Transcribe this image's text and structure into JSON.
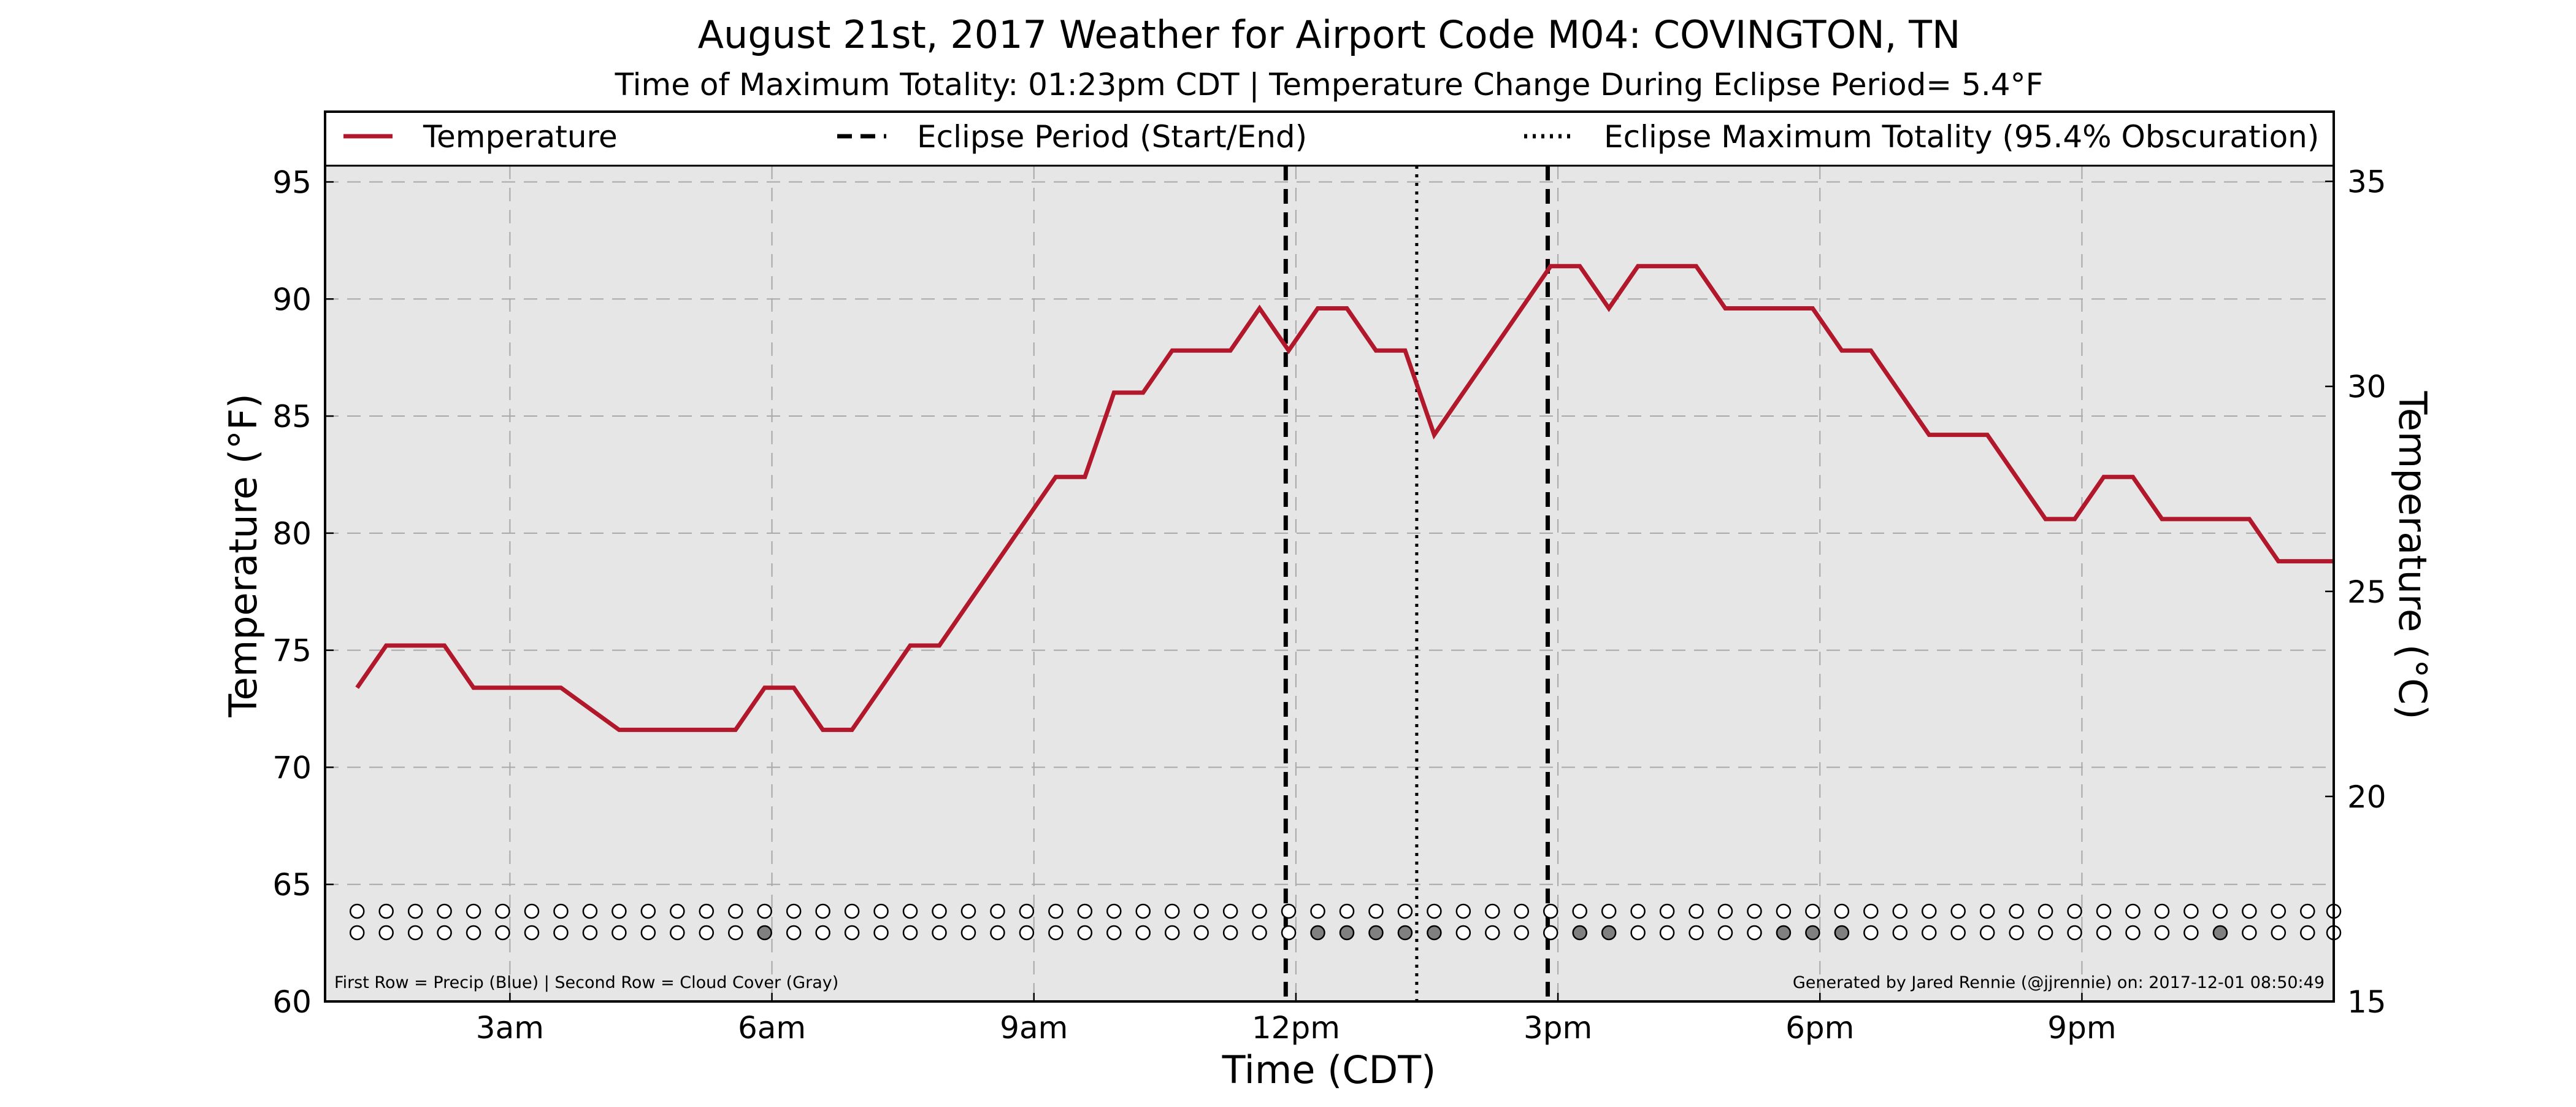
{
  "chart_data": {
    "type": "line",
    "title": "August 21st, 2017 Weather for Airport Code M04: COVINGTON, TN",
    "subtitle": "Time of Maximum Totality: 01:23pm CDT | Temperature Change During Eclipse Period= 5.4°F",
    "xlabel": "Time (CDT)",
    "ylabel": "Temperature (°F)",
    "ylabel_right": "Temperature (°C)",
    "xlim": [
      "00:53",
      "23:53"
    ],
    "ylim": [
      60,
      98
    ],
    "ylim_right": [
      15,
      36.7
    ],
    "grid": true,
    "legend_placement": "top",
    "x_ticks": [
      {
        "label": "3am",
        "value": "03:00"
      },
      {
        "label": "6am",
        "value": "06:00"
      },
      {
        "label": "9am",
        "value": "09:00"
      },
      {
        "label": "12pm",
        "value": "12:00"
      },
      {
        "label": "3pm",
        "value": "15:00"
      },
      {
        "label": "6pm",
        "value": "18:00"
      },
      {
        "label": "9pm",
        "value": "21:00"
      }
    ],
    "y_ticks": [
      "60",
      "65",
      "70",
      "75",
      "80",
      "85",
      "90",
      "95"
    ],
    "y_ticks_right": [
      "15",
      "20",
      "25",
      "30",
      "35"
    ],
    "legend": [
      {
        "label": "Temperature",
        "style": "solid",
        "color": "#b2182b"
      },
      {
        "label": "Eclipse Period (Start/End)",
        "style": "dashed",
        "color": "#000000"
      },
      {
        "label": "Eclipse Maximum Totality (95.4% Obscuration)",
        "style": "dotted",
        "color": "#000000"
      }
    ],
    "eclipse_period": [
      "11:53",
      "14:53"
    ],
    "max_totality": "13:23",
    "series": [
      {
        "name": "Temperature",
        "color": "#b2182b",
        "x": [
          "01:15",
          "01:35",
          "02:15",
          "02:35",
          "03:15",
          "03:35",
          "04:15",
          "04:35",
          "05:15",
          "05:35",
          "05:55",
          "06:15",
          "06:35",
          "06:55",
          "07:15",
          "07:35",
          "07:55",
          "08:15",
          "08:35",
          "08:55",
          "09:15",
          "09:35",
          "09:55",
          "10:15",
          "10:35",
          "10:55",
          "11:15",
          "11:35",
          "11:55",
          "12:15",
          "12:35",
          "12:55",
          "13:15",
          "13:35",
          "13:55",
          "14:15",
          "14:35",
          "14:55",
          "15:15",
          "15:35",
          "15:55",
          "16:15",
          "16:35",
          "16:55",
          "17:15",
          "17:35",
          "17:55",
          "18:15",
          "18:35",
          "18:55",
          "19:15",
          "19:35",
          "19:55",
          "20:15",
          "20:35",
          "20:55",
          "21:15",
          "21:35",
          "21:55",
          "22:15",
          "22:35",
          "22:55",
          "23:15",
          "23:35",
          "23:53"
        ],
        "y": [
          73.4,
          75.2,
          75.2,
          73.4,
          73.4,
          73.4,
          71.6,
          71.6,
          71.6,
          71.6,
          73.4,
          73.4,
          71.6,
          71.6,
          73.4,
          75.2,
          75.2,
          77.0,
          78.8,
          80.6,
          82.4,
          82.4,
          86.0,
          86.0,
          87.8,
          87.8,
          87.8,
          89.6,
          87.8,
          89.6,
          89.6,
          87.8,
          87.8,
          84.2,
          86.0,
          87.8,
          89.6,
          91.4,
          91.4,
          89.6,
          91.4,
          91.4,
          91.4,
          89.6,
          89.6,
          89.6,
          89.6,
          87.8,
          87.8,
          86.0,
          84.2,
          84.2,
          84.2,
          82.4,
          80.6,
          80.6,
          82.4,
          82.4,
          80.6,
          80.6,
          80.6,
          80.6,
          78.8,
          78.8,
          78.8
        ]
      }
    ],
    "precip_row": {
      "name": "First Row = Precip (Blue)",
      "x": [
        "01:15",
        "01:35",
        "01:55",
        "02:15",
        "02:35",
        "02:55",
        "03:15",
        "03:35",
        "03:55",
        "04:15",
        "04:35",
        "04:55",
        "05:15",
        "05:35",
        "05:55",
        "06:15",
        "06:35",
        "06:55",
        "07:15",
        "07:35",
        "07:55",
        "08:15",
        "08:35",
        "08:55",
        "09:15",
        "09:35",
        "09:55",
        "10:15",
        "10:35",
        "10:55",
        "11:15",
        "11:35",
        "11:55",
        "12:15",
        "12:35",
        "12:55",
        "13:15",
        "13:35",
        "13:55",
        "14:15",
        "14:35",
        "14:55",
        "15:15",
        "15:35",
        "15:55",
        "16:15",
        "16:35",
        "16:55",
        "17:15",
        "17:35",
        "17:55",
        "18:15",
        "18:35",
        "18:55",
        "19:15",
        "19:35",
        "19:55",
        "20:15",
        "20:35",
        "20:55",
        "21:15",
        "21:35",
        "21:55",
        "22:15",
        "22:35",
        "22:55",
        "23:15",
        "23:35",
        "23:53"
      ],
      "value": [
        0,
        0,
        0,
        0,
        0,
        0,
        0,
        0,
        0,
        0,
        0,
        0,
        0,
        0,
        0,
        0,
        0,
        0,
        0,
        0,
        0,
        0,
        0,
        0,
        0,
        0,
        0,
        0,
        0,
        0,
        0,
        0,
        0,
        0,
        0,
        0,
        0,
        0,
        0,
        0,
        0,
        0,
        0,
        0,
        0,
        0,
        0,
        0,
        0,
        0,
        0,
        0,
        0,
        0,
        0,
        0,
        0,
        0,
        0,
        0,
        0,
        0,
        0,
        0,
        0,
        0,
        0,
        0,
        0
      ]
    },
    "cloud_row": {
      "name": "Second Row = Cloud Cover (Gray)",
      "x": [
        "01:15",
        "01:35",
        "01:55",
        "02:15",
        "02:35",
        "02:55",
        "03:15",
        "03:35",
        "03:55",
        "04:15",
        "04:35",
        "04:55",
        "05:15",
        "05:35",
        "05:55",
        "06:15",
        "06:35",
        "06:55",
        "07:15",
        "07:35",
        "07:55",
        "08:15",
        "08:35",
        "08:55",
        "09:15",
        "09:35",
        "09:55",
        "10:15",
        "10:35",
        "10:55",
        "11:15",
        "11:35",
        "11:55",
        "12:15",
        "12:35",
        "12:55",
        "13:15",
        "13:35",
        "13:55",
        "14:15",
        "14:35",
        "14:55",
        "15:15",
        "15:35",
        "15:55",
        "16:15",
        "16:35",
        "16:55",
        "17:15",
        "17:35",
        "17:55",
        "18:15",
        "18:35",
        "18:55",
        "19:15",
        "19:35",
        "19:55",
        "20:15",
        "20:35",
        "20:55",
        "21:15",
        "21:35",
        "21:55",
        "22:15",
        "22:35",
        "22:55",
        "23:15",
        "23:35",
        "23:53"
      ],
      "value": [
        0,
        0,
        0,
        0,
        0,
        0,
        0,
        0,
        0,
        0,
        0,
        0,
        0,
        0,
        1,
        0,
        0,
        0,
        0,
        0,
        0,
        0,
        0,
        0,
        0,
        0,
        0,
        0,
        0,
        0,
        0,
        0,
        0,
        1,
        1,
        1,
        1,
        1,
        0,
        0,
        0,
        0,
        1,
        1,
        0,
        0,
        0,
        0,
        0,
        1,
        1,
        1,
        0,
        0,
        0,
        0,
        0,
        0,
        0,
        0,
        0,
        0,
        0,
        0,
        1,
        0,
        0,
        0,
        0
      ]
    },
    "note_left": "First Row = Precip (Blue) | Second Row = Cloud Cover (Gray)",
    "note_right": "Generated by Jared Rennie (@jjrennie) on: 2017-12-01 08:50:49"
  }
}
